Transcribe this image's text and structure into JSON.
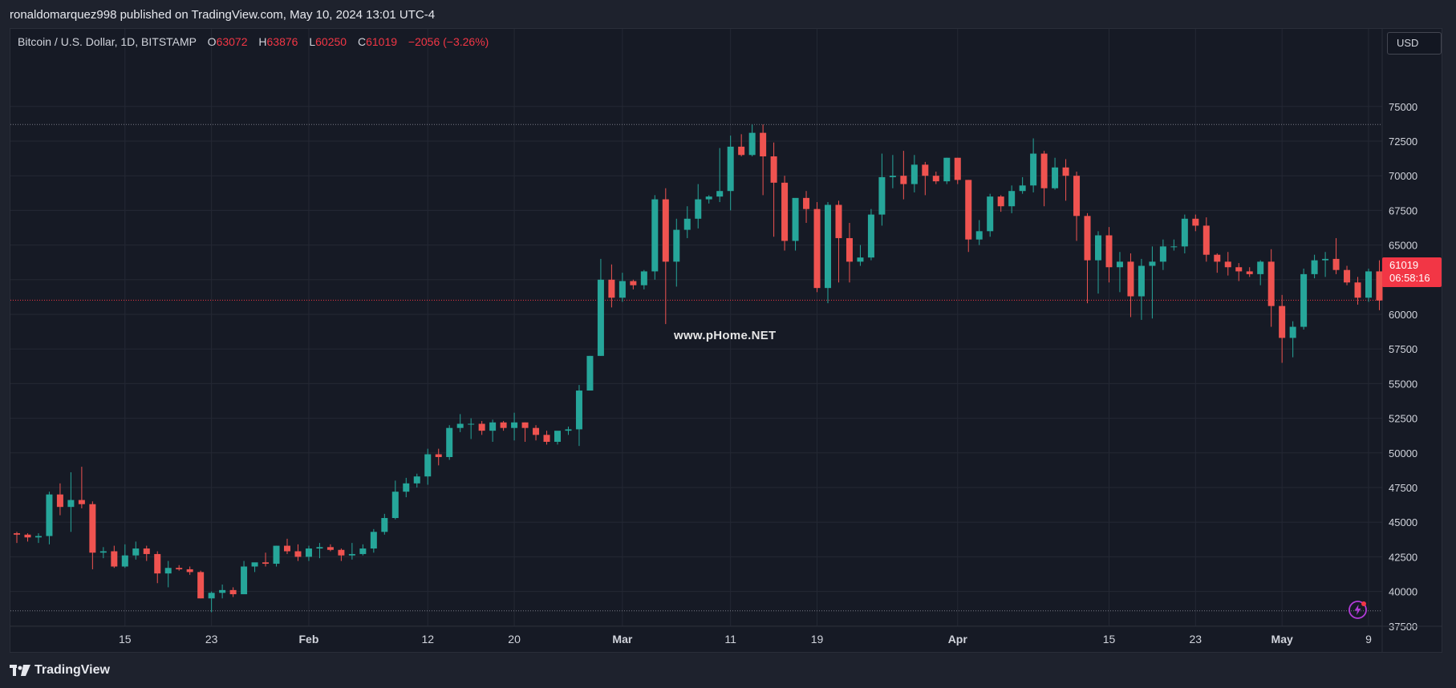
{
  "header": {
    "published_text": "ronaldomarquez998 published on TradingView.com, May 10, 2024 13:01 UTC-4"
  },
  "legend": {
    "symbol": "Bitcoin / U.S. Dollar, 1D, BITSTAMP",
    "o_label": "O",
    "o_value": "63072",
    "h_label": "H",
    "h_value": "63876",
    "l_label": "L",
    "l_value": "60250",
    "c_label": "C",
    "c_value": "61019",
    "change": "−2056 (−3.26%)"
  },
  "currency_button": "USD",
  "last_price": {
    "price": "61019",
    "countdown": "06:58:16"
  },
  "watermark": "www.pHome.NET",
  "footer": {
    "brand": "TradingView"
  },
  "colors": {
    "up": "#26a69a",
    "down": "#ef5350",
    "background": "#161a25",
    "grid": "#242834",
    "price_line": "#f23645"
  },
  "icons": {
    "bolt": "bolt-icon",
    "logo": "tradingview-logo-icon"
  },
  "chart_data": {
    "type": "candlestick",
    "ylim": [
      35000,
      76000
    ],
    "y_ticks": [
      37500,
      40000,
      42500,
      45000,
      47500,
      50000,
      52500,
      55000,
      57500,
      60000,
      62500,
      65000,
      67500,
      70000,
      72500,
      75000
    ],
    "x_tick_labels": [
      {
        "label": "15",
        "date": "2024-01-15"
      },
      {
        "label": "23",
        "date": "2024-01-23"
      },
      {
        "label": "Feb",
        "date": "2024-02-01"
      },
      {
        "label": "12",
        "date": "2024-02-12"
      },
      {
        "label": "20",
        "date": "2024-02-20"
      },
      {
        "label": "Mar",
        "date": "2024-03-01"
      },
      {
        "label": "11",
        "date": "2024-03-11"
      },
      {
        "label": "19",
        "date": "2024-03-19"
      },
      {
        "label": "Apr",
        "date": "2024-04-01"
      },
      {
        "label": "15",
        "date": "2024-04-15"
      },
      {
        "label": "23",
        "date": "2024-04-23"
      },
      {
        "label": "May",
        "date": "2024-05-01"
      },
      {
        "label": "9",
        "date": "2024-05-09"
      }
    ],
    "reference_lines": [
      73700,
      38600
    ],
    "last_price": 61019,
    "dates": [
      "2024-01-05",
      "2024-01-06",
      "2024-01-07",
      "2024-01-08",
      "2024-01-09",
      "2024-01-10",
      "2024-01-11",
      "2024-01-12",
      "2024-01-13",
      "2024-01-14",
      "2024-01-15",
      "2024-01-16",
      "2024-01-17",
      "2024-01-18",
      "2024-01-19",
      "2024-01-20",
      "2024-01-21",
      "2024-01-22",
      "2024-01-23",
      "2024-01-24",
      "2024-01-25",
      "2024-01-26",
      "2024-01-27",
      "2024-01-28",
      "2024-01-29",
      "2024-01-30",
      "2024-01-31",
      "2024-02-01",
      "2024-02-02",
      "2024-02-03",
      "2024-02-04",
      "2024-02-05",
      "2024-02-06",
      "2024-02-07",
      "2024-02-08",
      "2024-02-09",
      "2024-02-10",
      "2024-02-11",
      "2024-02-12",
      "2024-02-13",
      "2024-02-14",
      "2024-02-15",
      "2024-02-16",
      "2024-02-17",
      "2024-02-18",
      "2024-02-19",
      "2024-02-20",
      "2024-02-21",
      "2024-02-22",
      "2024-02-23",
      "2024-02-24",
      "2024-02-25",
      "2024-02-26",
      "2024-02-27",
      "2024-02-28",
      "2024-02-29",
      "2024-03-01",
      "2024-03-02",
      "2024-03-03",
      "2024-03-04",
      "2024-03-05",
      "2024-03-06",
      "2024-03-07",
      "2024-03-08",
      "2024-03-09",
      "2024-03-10",
      "2024-03-11",
      "2024-03-12",
      "2024-03-13",
      "2024-03-14",
      "2024-03-15",
      "2024-03-16",
      "2024-03-17",
      "2024-03-18",
      "2024-03-19",
      "2024-03-20",
      "2024-03-21",
      "2024-03-22",
      "2024-03-23",
      "2024-03-24",
      "2024-03-25",
      "2024-03-26",
      "2024-03-27",
      "2024-03-28",
      "2024-03-29",
      "2024-03-30",
      "2024-03-31",
      "2024-04-01",
      "2024-04-02",
      "2024-04-03",
      "2024-04-04",
      "2024-04-05",
      "2024-04-06",
      "2024-04-07",
      "2024-04-08",
      "2024-04-09",
      "2024-04-10",
      "2024-04-11",
      "2024-04-12",
      "2024-04-13",
      "2024-04-14",
      "2024-04-15",
      "2024-04-16",
      "2024-04-17",
      "2024-04-18",
      "2024-04-19",
      "2024-04-20",
      "2024-04-21",
      "2024-04-22",
      "2024-04-23",
      "2024-04-24",
      "2024-04-25",
      "2024-04-26",
      "2024-04-27",
      "2024-04-28",
      "2024-04-29",
      "2024-04-30",
      "2024-05-01",
      "2024-05-02",
      "2024-05-03",
      "2024-05-04",
      "2024-05-05",
      "2024-05-06",
      "2024-05-07",
      "2024-05-08",
      "2024-05-09",
      "2024-05-10"
    ],
    "candles": [
      [
        44200,
        44300,
        43500,
        44100
      ],
      [
        44100,
        44200,
        43600,
        43900
      ],
      [
        43900,
        44200,
        43500,
        44000
      ],
      [
        44000,
        47200,
        43400,
        47000
      ],
      [
        47000,
        47800,
        45500,
        46100
      ],
      [
        46100,
        48600,
        44300,
        46600
      ],
      [
        46600,
        49000,
        46000,
        46300
      ],
      [
        46300,
        46500,
        41600,
        42800
      ],
      [
        42800,
        43200,
        42400,
        42900
      ],
      [
        42900,
        43300,
        41700,
        41800
      ],
      [
        41800,
        43400,
        41700,
        42600
      ],
      [
        42600,
        43600,
        42300,
        43100
      ],
      [
        43100,
        43300,
        42200,
        42700
      ],
      [
        42700,
        42900,
        40600,
        41300
      ],
      [
        41300,
        42200,
        40300,
        41700
      ],
      [
        41700,
        41900,
        41500,
        41600
      ],
      [
        41600,
        41800,
        41200,
        41400
      ],
      [
        41400,
        41500,
        39500,
        39500
      ],
      [
        39500,
        40000,
        38500,
        39900
      ],
      [
        39900,
        40500,
        39500,
        40100
      ],
      [
        40100,
        40300,
        39600,
        39800
      ],
      [
        39800,
        42200,
        39800,
        41800
      ],
      [
        41800,
        42000,
        41400,
        42100
      ],
      [
        42100,
        42800,
        41800,
        42000
      ],
      [
        42000,
        43300,
        41800,
        43300
      ],
      [
        43300,
        43800,
        42700,
        42900
      ],
      [
        42900,
        43400,
        42200,
        42500
      ],
      [
        42500,
        43300,
        42200,
        43100
      ],
      [
        43100,
        43500,
        42400,
        43200
      ],
      [
        43200,
        43400,
        42900,
        43000
      ],
      [
        43000,
        43100,
        42200,
        42600
      ],
      [
        42600,
        43500,
        42300,
        42700
      ],
      [
        42700,
        43400,
        42600,
        43100
      ],
      [
        43100,
        44500,
        42800,
        44300
      ],
      [
        44300,
        45600,
        44100,
        45300
      ],
      [
        45300,
        48000,
        45200,
        47200
      ],
      [
        47200,
        48200,
        46800,
        47800
      ],
      [
        47800,
        48500,
        47500,
        48300
      ],
      [
        48300,
        50300,
        47700,
        49900
      ],
      [
        49900,
        50300,
        49100,
        49700
      ],
      [
        49700,
        52000,
        49500,
        51800
      ],
      [
        51800,
        52800,
        51500,
        52100
      ],
      [
        52100,
        52500,
        51000,
        52100
      ],
      [
        52100,
        52300,
        51300,
        51600
      ],
      [
        51600,
        52400,
        50800,
        52200
      ],
      [
        52200,
        52300,
        51600,
        51800
      ],
      [
        51800,
        52900,
        50900,
        52200
      ],
      [
        52200,
        52200,
        50800,
        51800
      ],
      [
        51800,
        52000,
        50900,
        51300
      ],
      [
        51300,
        51600,
        50600,
        50800
      ],
      [
        50800,
        51500,
        50600,
        51600
      ],
      [
        51600,
        51900,
        51300,
        51700
      ],
      [
        51700,
        54900,
        50500,
        54500
      ],
      [
        54500,
        57000,
        54500,
        57000
      ],
      [
        57000,
        64000,
        57000,
        62500
      ],
      [
        62500,
        63600,
        60500,
        61200
      ],
      [
        61200,
        63000,
        60900,
        62400
      ],
      [
        62400,
        62500,
        61800,
        62100
      ],
      [
        62100,
        63200,
        61800,
        63100
      ],
      [
        63100,
        68600,
        62500,
        68300
      ],
      [
        68300,
        69100,
        59300,
        63800
      ],
      [
        63800,
        66900,
        62000,
        66100
      ],
      [
        66100,
        67800,
        65500,
        66900
      ],
      [
        66900,
        69400,
        66200,
        68300
      ],
      [
        68300,
        68600,
        68000,
        68500
      ],
      [
        68500,
        72000,
        68100,
        68900
      ],
      [
        68900,
        72900,
        67500,
        72100
      ],
      [
        72100,
        73000,
        71400,
        71500
      ],
      [
        71500,
        73700,
        71400,
        73100
      ],
      [
        73100,
        73700,
        68600,
        71400
      ],
      [
        71400,
        72400,
        65600,
        69500
      ],
      [
        69500,
        70000,
        64600,
        65300
      ],
      [
        65300,
        68200,
        64600,
        68400
      ],
      [
        68400,
        68900,
        66600,
        67600
      ],
      [
        67600,
        68100,
        61600,
        61900
      ],
      [
        61900,
        68100,
        60800,
        67900
      ],
      [
        67900,
        68200,
        62300,
        65500
      ],
      [
        65500,
        66600,
        62300,
        63800
      ],
      [
        63800,
        65000,
        63500,
        64100
      ],
      [
        64100,
        67600,
        63900,
        67200
      ],
      [
        67200,
        71600,
        66400,
        69900
      ],
      [
        69900,
        71500,
        69100,
        70000
      ],
      [
        70000,
        71800,
        68300,
        69400
      ],
      [
        69400,
        71500,
        68800,
        70800
      ],
      [
        70800,
        71000,
        68600,
        70000
      ],
      [
        70000,
        70300,
        69400,
        69600
      ],
      [
        69600,
        71300,
        69400,
        71300
      ],
      [
        71300,
        71300,
        69400,
        69700
      ],
      [
        69700,
        69700,
        64500,
        65400
      ],
      [
        65400,
        66800,
        65000,
        66000
      ],
      [
        66000,
        68700,
        65600,
        68500
      ],
      [
        68500,
        68600,
        67400,
        67800
      ],
      [
        67800,
        69300,
        67300,
        68900
      ],
      [
        68900,
        69900,
        68700,
        69300
      ],
      [
        69300,
        72700,
        68800,
        71600
      ],
      [
        71600,
        71800,
        67800,
        69100
      ],
      [
        69100,
        71300,
        69000,
        70600
      ],
      [
        70600,
        71200,
        68200,
        70000
      ],
      [
        70000,
        70300,
        65300,
        67100
      ],
      [
        67100,
        67300,
        60800,
        63900
      ],
      [
        63900,
        66000,
        61500,
        65700
      ],
      [
        65700,
        66300,
        62300,
        63400
      ],
      [
        63400,
        64500,
        61600,
        63800
      ],
      [
        63800,
        64400,
        59800,
        61300
      ],
      [
        61300,
        64000,
        59600,
        63500
      ],
      [
        63500,
        64900,
        59700,
        63800
      ],
      [
        63800,
        65400,
        63200,
        64900
      ],
      [
        64900,
        65400,
        64600,
        64900
      ],
      [
        64900,
        67200,
        64400,
        66900
      ],
      [
        66900,
        67200,
        66000,
        66400
      ],
      [
        66400,
        67000,
        63800,
        64300
      ],
      [
        64300,
        64400,
        63000,
        63800
      ],
      [
        63800,
        64500,
        62800,
        63400
      ],
      [
        63400,
        63700,
        62400,
        63100
      ],
      [
        63100,
        63400,
        62700,
        62900
      ],
      [
        62900,
        63900,
        62100,
        63800
      ],
      [
        63800,
        64700,
        59100,
        60600
      ],
      [
        60600,
        61400,
        56500,
        58300
      ],
      [
        58300,
        59500,
        56900,
        59100
      ],
      [
        59100,
        63300,
        58900,
        62900
      ],
      [
        62900,
        64300,
        62600,
        63900
      ],
      [
        63900,
        64500,
        62700,
        64000
      ],
      [
        64000,
        65500,
        62900,
        63200
      ],
      [
        63200,
        63500,
        62100,
        62300
      ],
      [
        62300,
        62700,
        60700,
        61200
      ],
      [
        61200,
        63300,
        60900,
        63100
      ],
      [
        63100,
        63900,
        60300,
        61000
      ]
    ]
  }
}
